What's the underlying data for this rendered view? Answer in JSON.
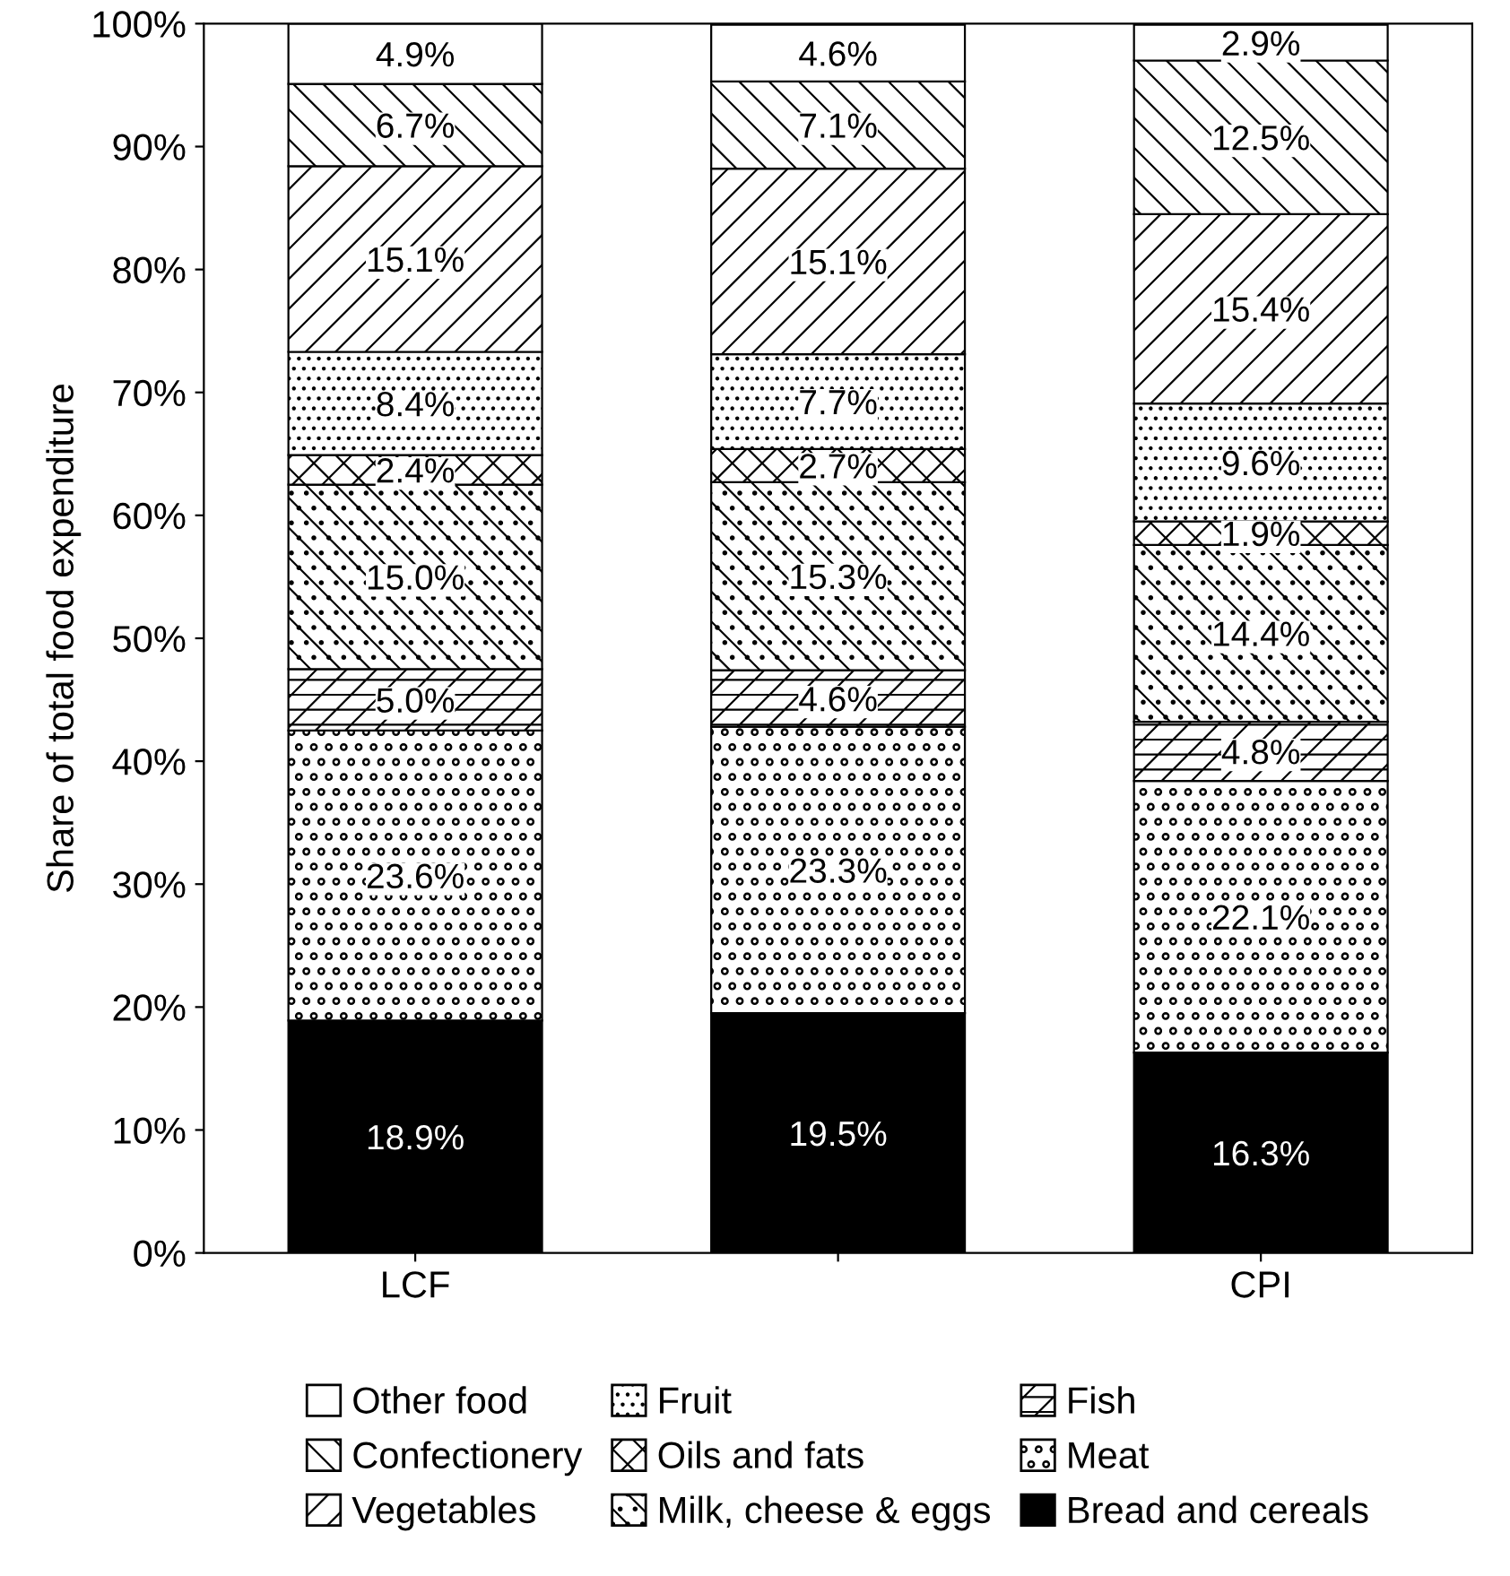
{
  "chart_data": {
    "type": "bar",
    "stacked": true,
    "ylabel": "Share of total food expenditure",
    "categories": [
      "LCF",
      null,
      "CPI"
    ],
    "ylim": [
      0,
      100
    ],
    "yticks": [
      {
        "value": 0,
        "label": "0%"
      },
      {
        "value": 10,
        "label": "10%"
      },
      {
        "value": 20,
        "label": "20%"
      },
      {
        "value": 30,
        "label": "30%"
      },
      {
        "value": 40,
        "label": "40%"
      },
      {
        "value": 50,
        "label": "50%"
      },
      {
        "value": 60,
        "label": "60%"
      },
      {
        "value": 70,
        "label": "70%"
      },
      {
        "value": 80,
        "label": "80%"
      },
      {
        "value": 90,
        "label": "90%"
      },
      {
        "value": 100,
        "label": "100%"
      }
    ],
    "grid": false,
    "legend": "bottom",
    "series": [
      {
        "name": "Bread and cereals",
        "color": "#000000",
        "values": [
          18.9,
          19.5,
          16.3
        ],
        "value_labels": [
          "18.9%",
          "19.5%",
          "16.3%"
        ]
      },
      {
        "name": "Meat",
        "color": "#000000",
        "values": [
          23.6,
          23.3,
          22.1
        ],
        "value_labels": [
          "23.6%",
          "23.3%",
          "22.1%"
        ]
      },
      {
        "name": "Fish",
        "color": "#000000",
        "values": [
          5.0,
          4.6,
          4.8
        ],
        "value_labels": [
          "5.0%",
          "4.6%",
          "4.8%"
        ]
      },
      {
        "name": "Milk, cheese & eggs",
        "color": "#000000",
        "values": [
          15.0,
          15.3,
          14.4
        ],
        "value_labels": [
          "15.0%",
          "15.3%",
          "14.4%"
        ]
      },
      {
        "name": "Oils and fats",
        "color": "#000000",
        "values": [
          2.4,
          2.7,
          1.9
        ],
        "value_labels": [
          "2.4%",
          "2.7%",
          "1.9%"
        ]
      },
      {
        "name": "Fruit",
        "color": "#000000",
        "values": [
          8.4,
          7.7,
          9.6
        ],
        "value_labels": [
          "8.4%",
          "7.7%",
          "9.6%"
        ]
      },
      {
        "name": "Vegetables",
        "color": "#000000",
        "values": [
          15.1,
          15.1,
          15.4
        ],
        "value_labels": [
          "15.1%",
          "15.1%",
          "15.4%"
        ]
      },
      {
        "name": "Confectionery",
        "color": "#000000",
        "values": [
          6.7,
          7.1,
          12.5
        ],
        "value_labels": [
          "6.7%",
          "7.1%",
          "12.5%"
        ]
      },
      {
        "name": "Other food",
        "color": "#ffffff",
        "values": [
          4.9,
          4.6,
          2.9
        ],
        "value_labels": [
          "4.9%",
          "4.6%",
          "2.9%"
        ]
      }
    ]
  }
}
